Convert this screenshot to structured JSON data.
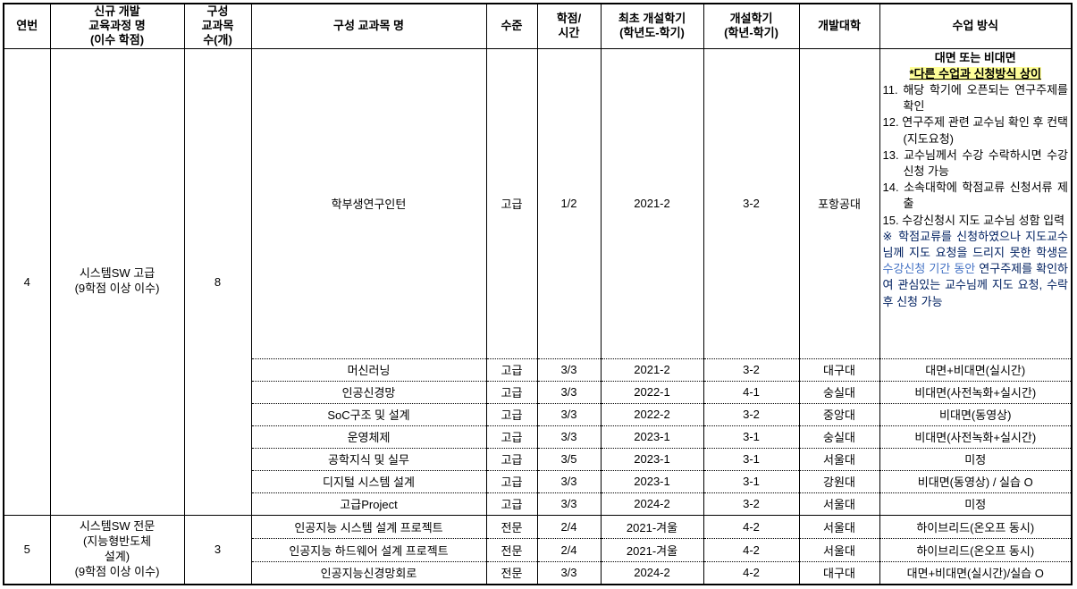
{
  "colors": {
    "highlight_bg": "#FFFF99",
    "note_dark": "#002060",
    "note_light": "#4472C4",
    "border": "#000000",
    "background": "#FFFFFF"
  },
  "table": {
    "headers": [
      "연번",
      "신규 개발\n교육과정 명\n(이수 학점)",
      "구성\n교과목\n수(개)",
      "구성 교과목 명",
      "수준",
      "학점/\n시간",
      "최초 개설학기\n(학년도-학기)",
      "개설학기\n(학년-학기)",
      "개발대학",
      "수업 방식"
    ],
    "special": {
      "line1": "대면 또는 비대면",
      "line2": "*다른 수업과 신청방식 상이",
      "steps": [
        "11. 해당 학기에 오픈되는 연구주제를 확인",
        "12. 연구주제 관련 교수님 확인 후 컨택(지도요청)",
        "13. 교수님께서 수강 수락하시면 수강신청 가능",
        "14. 소속대학에 학점교류 신청서류 제출",
        "15. 수강신청시 지도 교수님 성함 입력"
      ],
      "note_prefix": "※ 학점교류를 신청하였으나 지도교수님께 지도 요청을 드리지 못한 학생은 ",
      "note_highlight": "수강신청 기간 동안",
      "note_suffix": " 연구주제를 확인하여 관심있는 교수님께 지도 요청, 수락 후 신청 가능"
    },
    "groups": [
      {
        "no": "4",
        "curriculum": "시스템SW 고급\n(9학점 이상 이수)",
        "course_count": "8",
        "courses": [
          {
            "name": "학부생연구인턴",
            "level": "고급",
            "credit": "1/2",
            "first": "2021-2",
            "semester": "3-2",
            "univ": "포항공대",
            "method_special": true
          },
          {
            "name": "머신러닝",
            "level": "고급",
            "credit": "3/3",
            "first": "2021-2",
            "semester": "3-2",
            "univ": "대구대",
            "method": "대면+비대면(실시간)"
          },
          {
            "name": "인공신경망",
            "level": "고급",
            "credit": "3/3",
            "first": "2022-1",
            "semester": "4-1",
            "univ": "숭실대",
            "method": "비대면(사전녹화+실시간)"
          },
          {
            "name": "SoC구조 및 설계",
            "level": "고급",
            "credit": "3/3",
            "first": "2022-2",
            "semester": "3-2",
            "univ": "중앙대",
            "method": "비대면(동영상)"
          },
          {
            "name": "운영체제",
            "level": "고급",
            "credit": "3/3",
            "first": "2023-1",
            "semester": "3-1",
            "univ": "숭실대",
            "method": "비대면(사전녹화+실시간)"
          },
          {
            "name": "공학지식 및 실무",
            "level": "고급",
            "credit": "3/5",
            "first": "2023-1",
            "semester": "3-1",
            "univ": "서울대",
            "method": "미정"
          },
          {
            "name": "디지털 시스템 설계",
            "level": "고급",
            "credit": "3/3",
            "first": "2023-1",
            "semester": "3-1",
            "univ": "강원대",
            "method": "비대면(동영상) / 실습 O"
          },
          {
            "name": "고급Project",
            "level": "고급",
            "credit": "3/3",
            "first": "2024-2",
            "semester": "3-2",
            "univ": "서울대",
            "method": "미정"
          }
        ]
      },
      {
        "no": "5",
        "curriculum": "시스템SW 전문\n(지능형반도체\n설계)\n(9학점 이상 이수)",
        "course_count": "3",
        "courses": [
          {
            "name": "인공지능 시스템 설계 프로젝트",
            "level": "전문",
            "credit": "2/4",
            "first": "2021-겨울",
            "semester": "4-2",
            "univ": "서울대",
            "method": "하이브리드(온오프 동시)"
          },
          {
            "name": "인공지능 하드웨어 설계 프로젝트",
            "level": "전문",
            "credit": "2/4",
            "first": "2021-겨울",
            "semester": "4-2",
            "univ": "서울대",
            "method": "하이브리드(온오프 동시)"
          },
          {
            "name": "인공지능신경망회로",
            "level": "전문",
            "credit": "3/3",
            "first": "2024-2",
            "semester": "4-2",
            "univ": "대구대",
            "method": "대면+비대면(실시간)/실습 O"
          }
        ]
      }
    ]
  }
}
